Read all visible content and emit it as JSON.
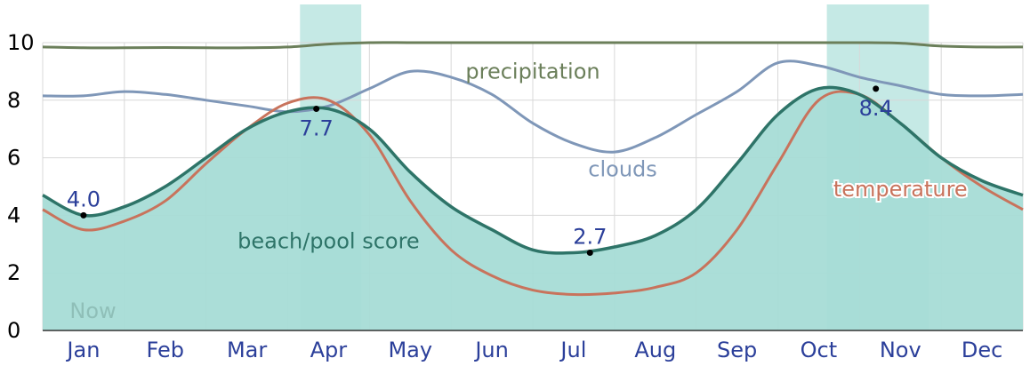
{
  "chart_data": {
    "type": "area",
    "xlim": [
      0,
      12
    ],
    "ylim": [
      0,
      10
    ],
    "y_ticks": [
      "0",
      "2",
      "4",
      "6",
      "8",
      "10"
    ],
    "x_ticks": [
      "Jan",
      "Feb",
      "Mar",
      "Apr",
      "May",
      "Jun",
      "Jul",
      "Aug",
      "Sep",
      "Oct",
      "Nov",
      "Dec"
    ],
    "grid": true,
    "highlight_bands": [
      {
        "start": 3.15,
        "end": 3.9
      },
      {
        "start": 9.6,
        "end": 10.85
      }
    ],
    "now_label": "Now",
    "now_x": 0.2,
    "series": [
      {
        "name": "precipitation",
        "style": "line",
        "color": "#6b7f5a",
        "label_at": [
          6.0,
          9.0
        ],
        "x": [
          0,
          0.5,
          1,
          1.5,
          2,
          2.5,
          3,
          3.5,
          4,
          4.5,
          5,
          5.5,
          6,
          6.5,
          7,
          7.5,
          8,
          8.5,
          9,
          9.5,
          10,
          10.5,
          11,
          11.5,
          12
        ],
        "values": [
          9.85,
          9.82,
          9.82,
          9.83,
          9.82,
          9.82,
          9.85,
          9.95,
          10.0,
          10.0,
          10.0,
          10.0,
          10.0,
          10.0,
          10.0,
          10.0,
          10.0,
          10.0,
          10.0,
          10.0,
          10.0,
          9.98,
          9.88,
          9.85,
          9.85
        ]
      },
      {
        "name": "clouds",
        "style": "line",
        "color": "#7f97b8",
        "label_at": [
          7.1,
          5.6
        ],
        "x": [
          0,
          0.5,
          1,
          1.5,
          2,
          2.5,
          3,
          3.5,
          4,
          4.5,
          5,
          5.5,
          6,
          6.5,
          7,
          7.5,
          8,
          8.5,
          9,
          9.5,
          10,
          10.5,
          11,
          11.5,
          12
        ],
        "values": [
          8.15,
          8.15,
          8.3,
          8.2,
          8.0,
          7.8,
          7.6,
          7.8,
          8.4,
          9.0,
          8.8,
          8.2,
          7.2,
          6.5,
          6.2,
          6.7,
          7.5,
          8.3,
          9.3,
          9.2,
          8.8,
          8.5,
          8.2,
          8.15,
          8.2
        ]
      },
      {
        "name": "temperature",
        "style": "line",
        "color": "#c8735c",
        "label_at": [
          10.5,
          4.9
        ],
        "x": [
          0,
          0.5,
          1,
          1.5,
          2,
          2.5,
          3,
          3.5,
          4,
          4.5,
          5,
          5.5,
          6,
          6.5,
          7,
          7.5,
          8,
          8.5,
          9,
          9.5,
          10,
          10.5,
          11,
          11.5,
          12
        ],
        "values": [
          4.2,
          3.5,
          3.8,
          4.5,
          5.8,
          7.0,
          7.9,
          8.0,
          6.8,
          4.5,
          2.8,
          1.9,
          1.4,
          1.25,
          1.3,
          1.5,
          2.0,
          3.5,
          5.8,
          8.0,
          8.2,
          7.2,
          6.0,
          5.0,
          4.2
        ]
      },
      {
        "name": "beach/pool score",
        "style": "area",
        "color": "#2e7468",
        "fill": "#a6dcd6",
        "label_at": [
          3.5,
          3.1
        ],
        "x": [
          0,
          0.5,
          1,
          1.5,
          2,
          2.5,
          3,
          3.5,
          4,
          4.5,
          5,
          5.5,
          6,
          6.5,
          7,
          7.5,
          8,
          8.5,
          9,
          9.5,
          10,
          10.5,
          11,
          11.5,
          12
        ],
        "values": [
          4.7,
          4.0,
          4.3,
          5.0,
          6.0,
          7.0,
          7.6,
          7.7,
          7.0,
          5.5,
          4.3,
          3.5,
          2.8,
          2.7,
          2.9,
          3.3,
          4.2,
          5.8,
          7.5,
          8.4,
          8.2,
          7.2,
          6.0,
          5.2,
          4.7
        ]
      }
    ],
    "annotations": [
      {
        "x": 0.5,
        "y": 4.0,
        "label": "4.0",
        "label_side": "above"
      },
      {
        "x": 3.35,
        "y": 7.7,
        "label": "7.7",
        "label_side": "below"
      },
      {
        "x": 6.7,
        "y": 2.7,
        "label": "2.7",
        "label_side": "above"
      },
      {
        "x": 10.2,
        "y": 8.4,
        "label": "8.4",
        "label_side": "below"
      }
    ]
  },
  "colors": {
    "band": "#9fdad3",
    "grid": "#d8d8d8",
    "axis": "#333333",
    "x_tick": "#2b3f9a",
    "annotation": "#2b3f9a",
    "now": "#8fbfb8"
  }
}
